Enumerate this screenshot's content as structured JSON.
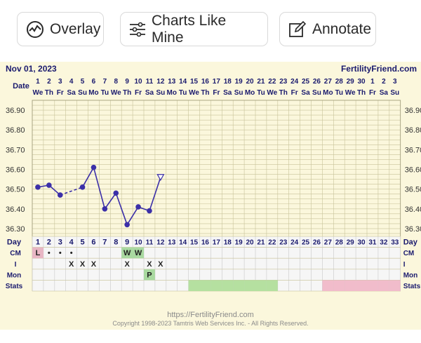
{
  "toolbar": {
    "overlay_label": "Overlay",
    "charts_like_mine_label": "Charts Like Mine",
    "annotate_label": "Annotate"
  },
  "chart_header": {
    "date": "Nov 01, 2023",
    "site": "FertilityFriend.com"
  },
  "row_labels": {
    "date": "Date",
    "day": "Day",
    "cm": "CM",
    "i": "I",
    "mon": "Mon",
    "stats": "Stats"
  },
  "date_numbers": [
    "1",
    "2",
    "3",
    "4",
    "5",
    "6",
    "7",
    "8",
    "9",
    "10",
    "11",
    "12",
    "13",
    "14",
    "15",
    "16",
    "17",
    "18",
    "19",
    "20",
    "21",
    "22",
    "23",
    "24",
    "25",
    "26",
    "27",
    "28",
    "29",
    "30",
    "1",
    "2",
    "3"
  ],
  "weekdays": [
    "We",
    "Th",
    "Fr",
    "Sa",
    "Su",
    "Mo",
    "Tu",
    "We",
    "Th",
    "Fr",
    "Sa",
    "Su",
    "Mo",
    "Tu",
    "We",
    "Th",
    "Fr",
    "Sa",
    "Su",
    "Mo",
    "Tu",
    "We",
    "Th",
    "Fr",
    "Sa",
    "Su",
    "Mo",
    "Tu",
    "We",
    "Th",
    "Fr",
    "Sa",
    "Su"
  ],
  "day_numbers": [
    "1",
    "2",
    "3",
    "4",
    "5",
    "6",
    "7",
    "8",
    "9",
    "10",
    "11",
    "12",
    "13",
    "14",
    "15",
    "16",
    "17",
    "18",
    "19",
    "20",
    "21",
    "22",
    "23",
    "24",
    "25",
    "26",
    "27",
    "28",
    "29",
    "30",
    "31",
    "32",
    "33"
  ],
  "y_ticks": [
    "36.90",
    "36.80",
    "36.70",
    "36.60",
    "36.50",
    "36.40",
    "36.30"
  ],
  "cm_row": [
    "L",
    "•",
    "•",
    "•",
    "",
    "",
    "",
    "",
    "W",
    "W",
    "",
    "",
    "",
    "",
    "",
    "",
    "",
    "",
    "",
    "",
    "",
    "",
    "",
    "",
    "",
    "",
    "",
    "",
    "",
    "",
    "",
    "",
    ""
  ],
  "i_row": [
    "",
    "",
    "",
    "X",
    "X",
    "X",
    "",
    "",
    "X",
    "",
    "X",
    "X",
    "",
    "",
    "",
    "",
    "",
    "",
    "",
    "",
    "",
    "",
    "",
    "",
    "",
    "",
    "",
    "",
    "",
    "",
    "",
    "",
    ""
  ],
  "mon_row": [
    "",
    "",
    "",
    "",
    "",
    "",
    "",
    "",
    "",
    "",
    "P",
    "",
    "",
    "",
    "",
    "",
    "",
    "",
    "",
    "",
    "",
    "",
    "",
    "",
    "",
    "",
    "",
    "",
    "",
    "",
    "",
    "",
    ""
  ],
  "stats_row": [
    "",
    "",
    "",
    "",
    "",
    "",
    "",
    "",
    "",
    "",
    "",
    "",
    "",
    "",
    "g",
    "g",
    "g",
    "g",
    "g",
    "g",
    "g",
    "g",
    "",
    "",
    "",
    "",
    "p",
    "p",
    "p",
    "p",
    "p",
    "p",
    "p"
  ],
  "colors": {
    "background": "#fbf7dc",
    "grid": "#c8c39a",
    "line": "#3b2fa8",
    "period": "#e8b6c4",
    "watery": "#a9d9a0",
    "stats_green": "#b5e0a0",
    "stats_pink": "#f1bccb"
  },
  "chart_data": {
    "type": "line",
    "x": [
      1,
      2,
      3,
      5,
      6,
      7,
      8,
      9,
      10,
      11,
      12
    ],
    "y": [
      36.51,
      36.52,
      36.47,
      36.51,
      36.61,
      36.4,
      36.48,
      36.32,
      36.41,
      36.39,
      36.56
    ],
    "dashed_segment": [
      3,
      5
    ],
    "open_marker_days": [
      12
    ],
    "ylim": [
      36.25,
      36.95
    ],
    "xlim": [
      1,
      33
    ]
  },
  "footer": {
    "url": "https://FertilityFriend.com",
    "copyright": "Copyright 1998-2023 Tamtris Web Services Inc. - All Rights Reserved."
  }
}
